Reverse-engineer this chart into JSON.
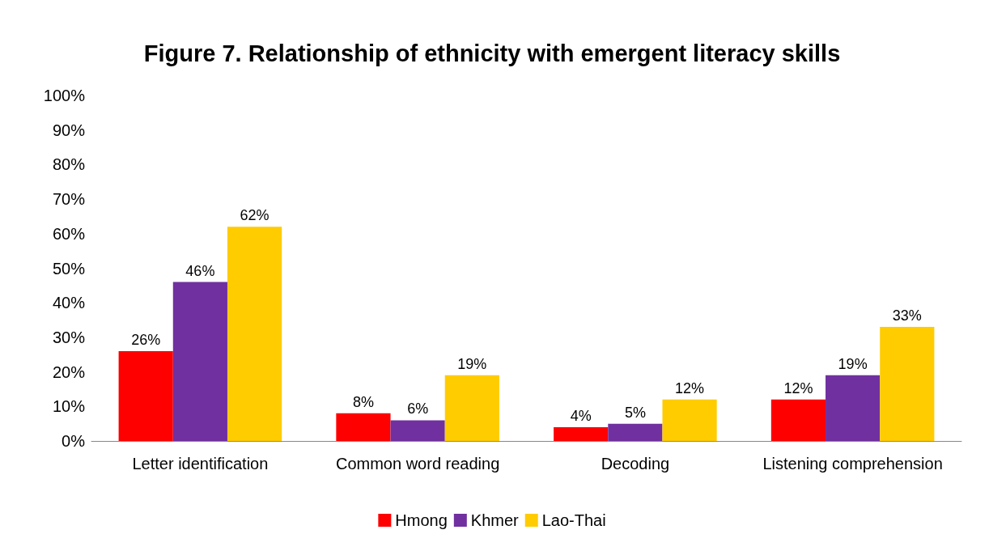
{
  "chart_data": {
    "type": "bar",
    "title": "Figure 7. Relationship of ethnicity with emergent literacy skills",
    "categories": [
      "Letter identification",
      "Common word reading",
      "Decoding",
      "Listening comprehension"
    ],
    "series": [
      {
        "name": "Hmong",
        "color": "#ff0000",
        "values": [
          26,
          8,
          4,
          12
        ],
        "value_labels": [
          "26%",
          "8%",
          "4%",
          "12%"
        ]
      },
      {
        "name": "Khmer",
        "color": "#7030a0",
        "values": [
          46,
          6,
          5,
          19
        ],
        "value_labels": [
          "46%",
          "6%",
          "5%",
          "19%"
        ]
      },
      {
        "name": "Lao-Thai",
        "color": "#ffcc00",
        "values": [
          62,
          19,
          12,
          33
        ],
        "value_labels": [
          "62%",
          "19%",
          "12%",
          "33%"
        ]
      }
    ],
    "ylim": [
      0,
      100
    ],
    "yticks": [
      {
        "value": 0,
        "label": "0%"
      },
      {
        "value": 10,
        "label": "10%"
      },
      {
        "value": 20,
        "label": "20%"
      },
      {
        "value": 30,
        "label": "30%"
      },
      {
        "value": 40,
        "label": "40%"
      },
      {
        "value": 50,
        "label": "50%"
      },
      {
        "value": 60,
        "label": "60%"
      },
      {
        "value": 70,
        "label": "70%"
      },
      {
        "value": 80,
        "label": "80%"
      },
      {
        "value": 90,
        "label": "90%"
      },
      {
        "value": 100,
        "label": "100%"
      }
    ],
    "grid": false,
    "legend": "bottom"
  }
}
